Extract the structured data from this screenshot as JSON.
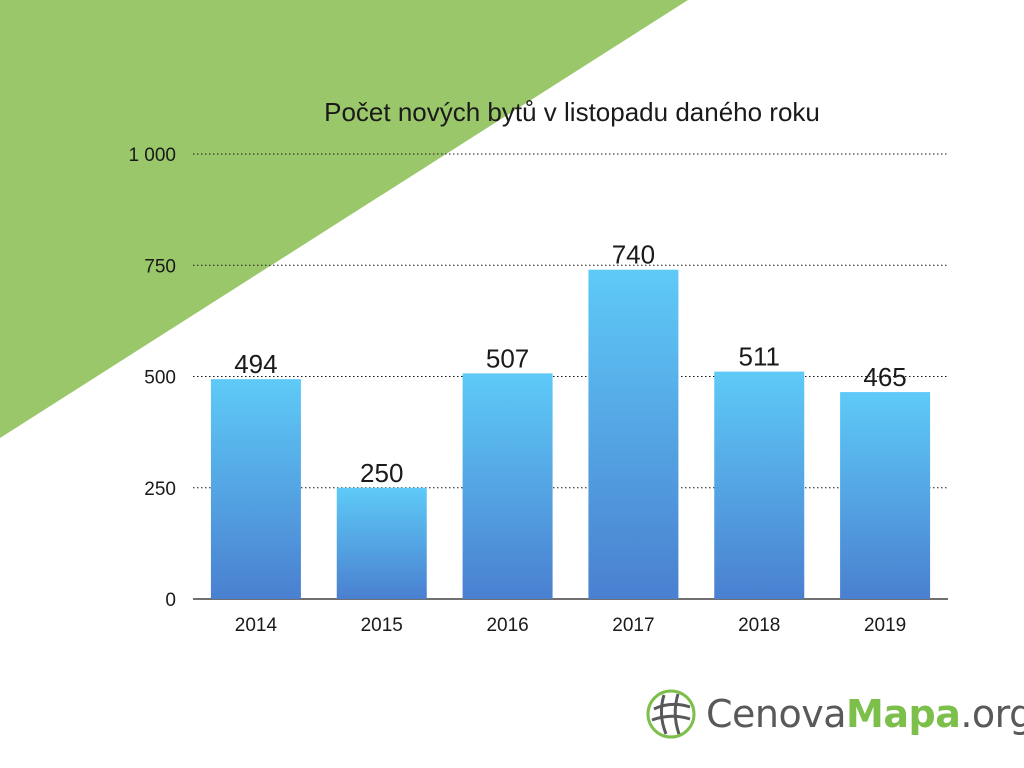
{
  "colors": {
    "triangle": "#9ac76a",
    "bar_top": "#5ecaf7",
    "bar_bottom": "#4a80d0",
    "grid": "#1a1a1a",
    "logo_gray": "#58595b",
    "logo_green": "#7cbf4a"
  },
  "chart_data": {
    "type": "bar",
    "title": "Počet nových bytů v listopadu daného roku",
    "categories": [
      "2014",
      "2015",
      "2016",
      "2017",
      "2018",
      "2019"
    ],
    "values": [
      494,
      250,
      507,
      740,
      511,
      465
    ],
    "data_labels": [
      "494",
      "250",
      "507",
      "740",
      "511",
      "465"
    ],
    "ylim": [
      0,
      1000
    ],
    "yticks": [
      0,
      250,
      500,
      750,
      1000
    ],
    "ytick_labels": [
      "0",
      "250",
      "500",
      "750",
      "1 000"
    ],
    "xlabel": "",
    "ylabel": "",
    "grid": "horizontal dotted"
  },
  "logo": {
    "icon": "globe-grid-icon",
    "part1": "Cenova",
    "part2": "Mapa",
    "part3": ".org"
  }
}
